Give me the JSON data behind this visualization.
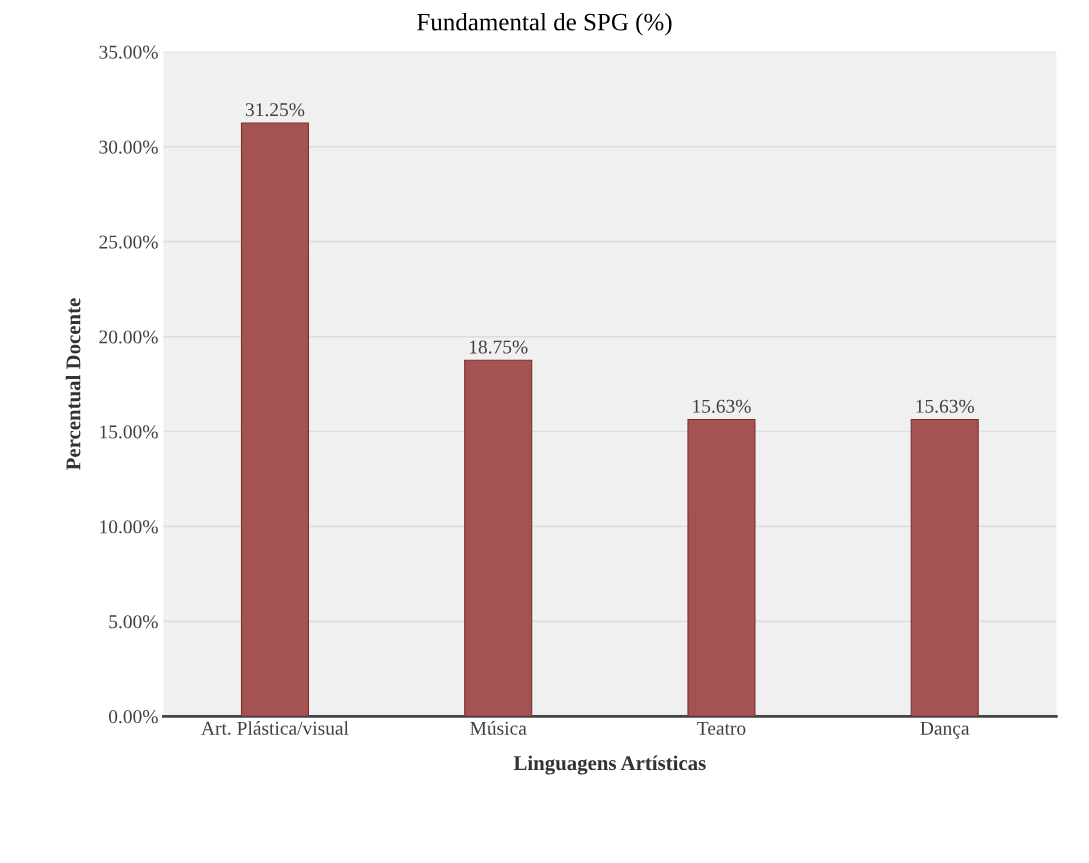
{
  "chart_data": {
    "type": "bar",
    "title": "Fundamental de SPG (%)",
    "xlabel": "Linguagens Artísticas",
    "ylabel": "Percentual Docente",
    "categories": [
      "Art. Plástica/visual",
      "Música",
      "Teatro",
      "Dança"
    ],
    "values": [
      31.25,
      18.75,
      15.63,
      15.63
    ],
    "value_labels": [
      "31.25%",
      "18.75%",
      "15.63%",
      "15.63%"
    ],
    "color": "#a55252",
    "ylim": [
      0,
      35
    ],
    "yticks": [
      {
        "value": 0,
        "label": "0.00%"
      },
      {
        "value": 5,
        "label": "5.00%"
      },
      {
        "value": 10,
        "label": "10.00%"
      },
      {
        "value": 15,
        "label": "15.00%"
      },
      {
        "value": 20,
        "label": "20.00%"
      },
      {
        "value": 25,
        "label": "25.00%"
      },
      {
        "value": 30,
        "label": "30.00%"
      },
      {
        "value": 35,
        "label": "35.00%"
      }
    ],
    "grid": "y",
    "legend": false
  }
}
